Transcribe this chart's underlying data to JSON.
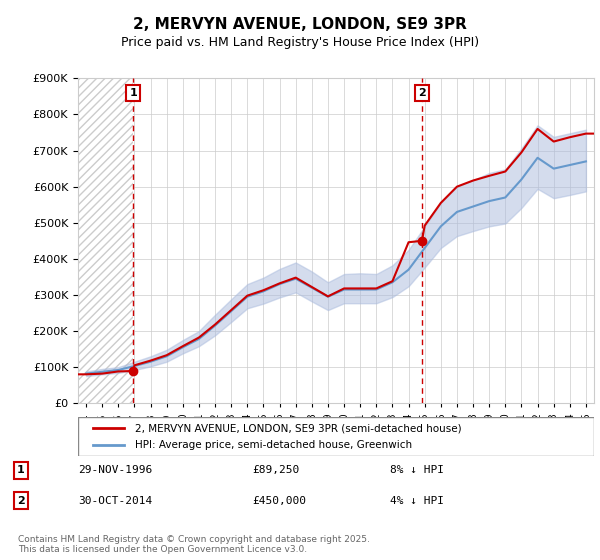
{
  "title": "2, MERVYN AVENUE, LONDON, SE9 3PR",
  "subtitle": "Price paid vs. HM Land Registry's House Price Index (HPI)",
  "legend_line1": "2, MERVYN AVENUE, LONDON, SE9 3PR (semi-detached house)",
  "legend_line2": "HPI: Average price, semi-detached house, Greenwich",
  "footer": "Contains HM Land Registry data © Crown copyright and database right 2025.\nThis data is licensed under the Open Government Licence v3.0.",
  "transaction1": {
    "label": "1",
    "date": "29-NOV-1996",
    "price": 89250,
    "hpi_diff": "8% ↓ HPI",
    "year": 1996.92
  },
  "transaction2": {
    "label": "2",
    "date": "30-OCT-2014",
    "price": 450000,
    "hpi_diff": "4% ↓ HPI",
    "year": 2014.83
  },
  "ylim": [
    0,
    900000
  ],
  "xlim": [
    1993.5,
    2025.5
  ],
  "price_color": "#cc0000",
  "hpi_color": "#6699cc",
  "hpi_fill_color": "#aabbdd",
  "grid_color": "#cccccc",
  "hatch_color": "#cccccc",
  "marker_color": "#cc0000",
  "dashed_line_color": "#cc0000",
  "background_color": "#ffffff",
  "hpi_years": [
    1994,
    1995,
    1996,
    1997,
    1998,
    1999,
    2000,
    2001,
    2002,
    2003,
    2004,
    2005,
    2006,
    2007,
    2008,
    2009,
    2010,
    2011,
    2012,
    2013,
    2014,
    2015,
    2016,
    2017,
    2018,
    2019,
    2020,
    2021,
    2022,
    2023,
    2024,
    2025
  ],
  "hpi_values": [
    82000,
    87000,
    92000,
    103000,
    115000,
    130000,
    155000,
    178000,
    215000,
    255000,
    295000,
    310000,
    330000,
    345000,
    320000,
    295000,
    315000,
    315000,
    315000,
    335000,
    370000,
    430000,
    490000,
    530000,
    545000,
    560000,
    570000,
    620000,
    680000,
    650000,
    660000,
    670000
  ],
  "hpi_upper": [
    88000,
    95000,
    100000,
    115000,
    130000,
    148000,
    175000,
    200000,
    245000,
    288000,
    330000,
    348000,
    372000,
    390000,
    365000,
    335000,
    358000,
    360000,
    358000,
    382000,
    425000,
    490000,
    555000,
    600000,
    618000,
    638000,
    648000,
    706000,
    770000,
    738000,
    748000,
    758000
  ],
  "hpi_lower": [
    75000,
    80000,
    84000,
    92000,
    102000,
    115000,
    138000,
    158000,
    188000,
    225000,
    263000,
    276000,
    293000,
    307000,
    282000,
    258000,
    277000,
    277000,
    277000,
    294000,
    324000,
    376000,
    430000,
    463000,
    477000,
    490000,
    498000,
    541000,
    594000,
    568000,
    577000,
    587000
  ],
  "price_years": [
    1993.5,
    1994,
    1995,
    1996,
    1996.92,
    1997,
    1998,
    1999,
    2000,
    2001,
    2002,
    2003,
    2004,
    2005,
    2006,
    2007,
    2008,
    2009,
    2010,
    2011,
    2012,
    2013,
    2014,
    2014.83,
    2015,
    2016,
    2017,
    2018,
    2019,
    2020,
    2021,
    2022,
    2023,
    2024,
    2025,
    2025.5
  ],
  "price_values": [
    80000,
    80000,
    82000,
    88000,
    89250,
    105000,
    118000,
    133000,
    158000,
    182000,
    218000,
    258000,
    298000,
    313000,
    332000,
    348000,
    322000,
    296000,
    318000,
    318000,
    318000,
    338000,
    446000,
    450000,
    492000,
    555000,
    600000,
    617000,
    630000,
    642000,
    695000,
    760000,
    725000,
    737000,
    747000,
    747000
  ]
}
